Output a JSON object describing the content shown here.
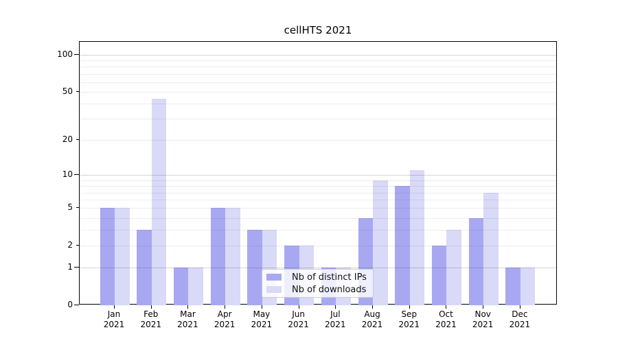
{
  "chart_data": {
    "type": "bar",
    "title": "cellHTS 2021",
    "year": "2021",
    "categories": [
      "Jan",
      "Feb",
      "Mar",
      "Apr",
      "May",
      "Jun",
      "Jul",
      "Aug",
      "Sep",
      "Oct",
      "Nov",
      "Dec"
    ],
    "series": [
      {
        "name": "Nb of distinct IPs",
        "color": "#a8a8f2",
        "values": [
          5,
          3,
          1,
          5,
          3,
          2,
          1,
          4,
          8,
          2,
          4,
          1
        ]
      },
      {
        "name": "Nb of downloads",
        "color": "#d9d9f8",
        "values": [
          5,
          44,
          1,
          5,
          3,
          2,
          1,
          9,
          11,
          3,
          7,
          1
        ]
      }
    ],
    "y_axis": {
      "scale": "log1p",
      "tick_values": [
        0,
        1,
        2,
        5,
        10,
        20,
        50,
        100
      ],
      "major_ticks": [
        1,
        10,
        100
      ],
      "minor_gridlines": [
        2,
        3,
        4,
        5,
        6,
        7,
        8,
        9,
        20,
        30,
        40,
        50,
        60,
        70,
        80,
        90
      ],
      "top_value": 127
    },
    "grid": true,
    "legend": {
      "position": "bottom-center",
      "entries": [
        "Nb of distinct IPs",
        "Nb of downloads"
      ]
    }
  }
}
